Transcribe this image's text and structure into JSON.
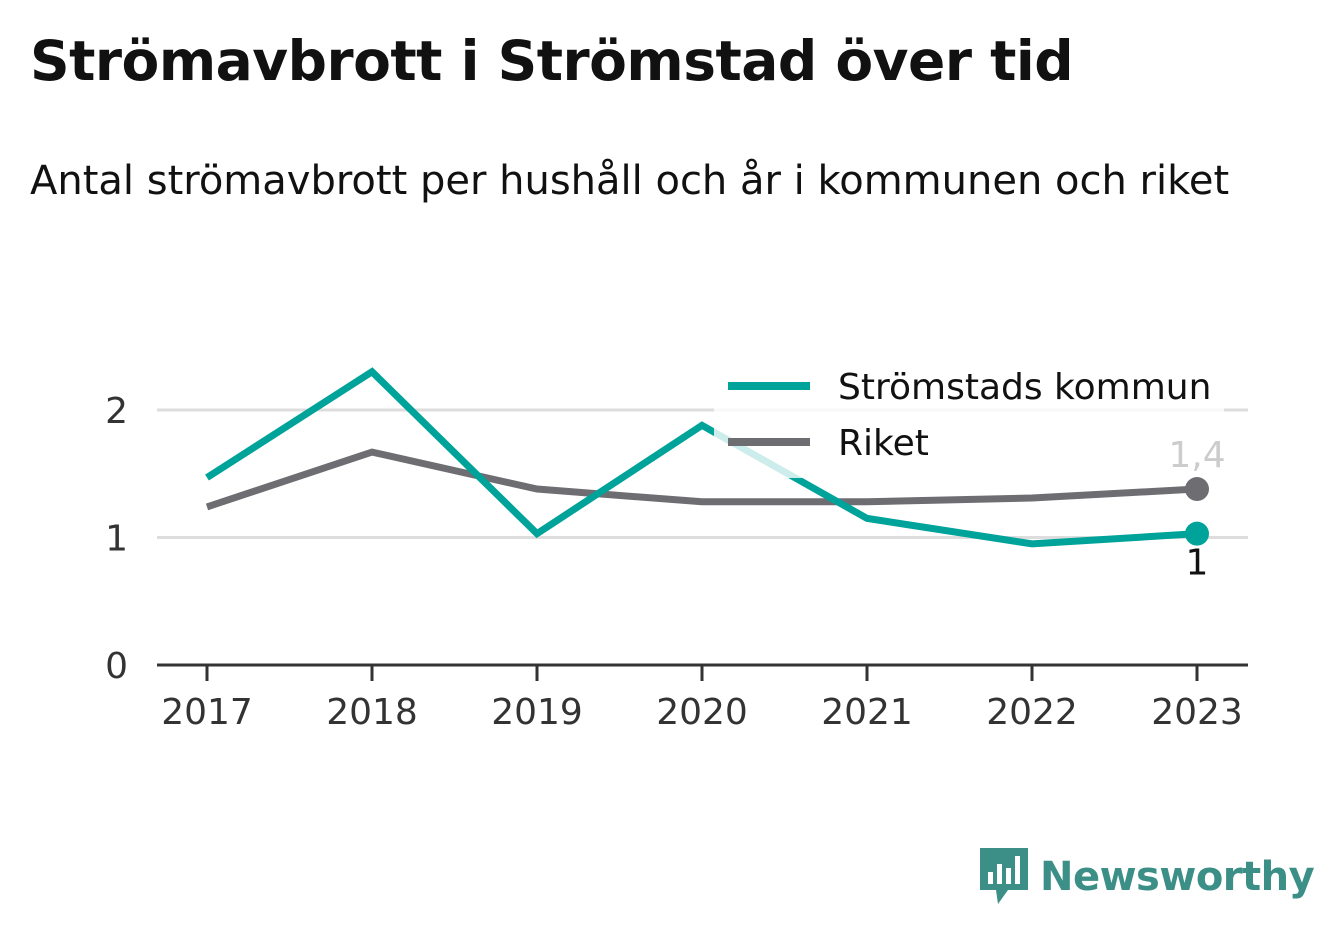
{
  "header": {
    "title": "Strömavbrott i Strömstad över tid",
    "subtitle": "Antal strömavbrott per hushåll och år i kommunen och riket"
  },
  "chart_data": {
    "type": "line",
    "x": [
      "2017",
      "2018",
      "2019",
      "2020",
      "2021",
      "2022",
      "2023"
    ],
    "series": [
      {
        "name": "Strömstads kommun",
        "color": "#00a39a",
        "values": [
          1.47,
          2.3,
          1.03,
          1.88,
          1.15,
          0.95,
          1.03
        ],
        "end_label": "1"
      },
      {
        "name": "Riket",
        "color": "#6e6d72",
        "values": [
          1.24,
          1.67,
          1.38,
          1.28,
          1.28,
          1.31,
          1.38
        ],
        "end_label": "1,4"
      }
    ],
    "yticks": [
      "0",
      "1",
      "2"
    ],
    "ylim": [
      0,
      2.5
    ],
    "xlabel": "",
    "ylabel": "",
    "grid": true,
    "legend": "top-right"
  },
  "branding": {
    "logo_text": "Newsworthy",
    "logo_icon": "newsworthy-chart-bubble-icon",
    "accent": "#3b8f86"
  }
}
